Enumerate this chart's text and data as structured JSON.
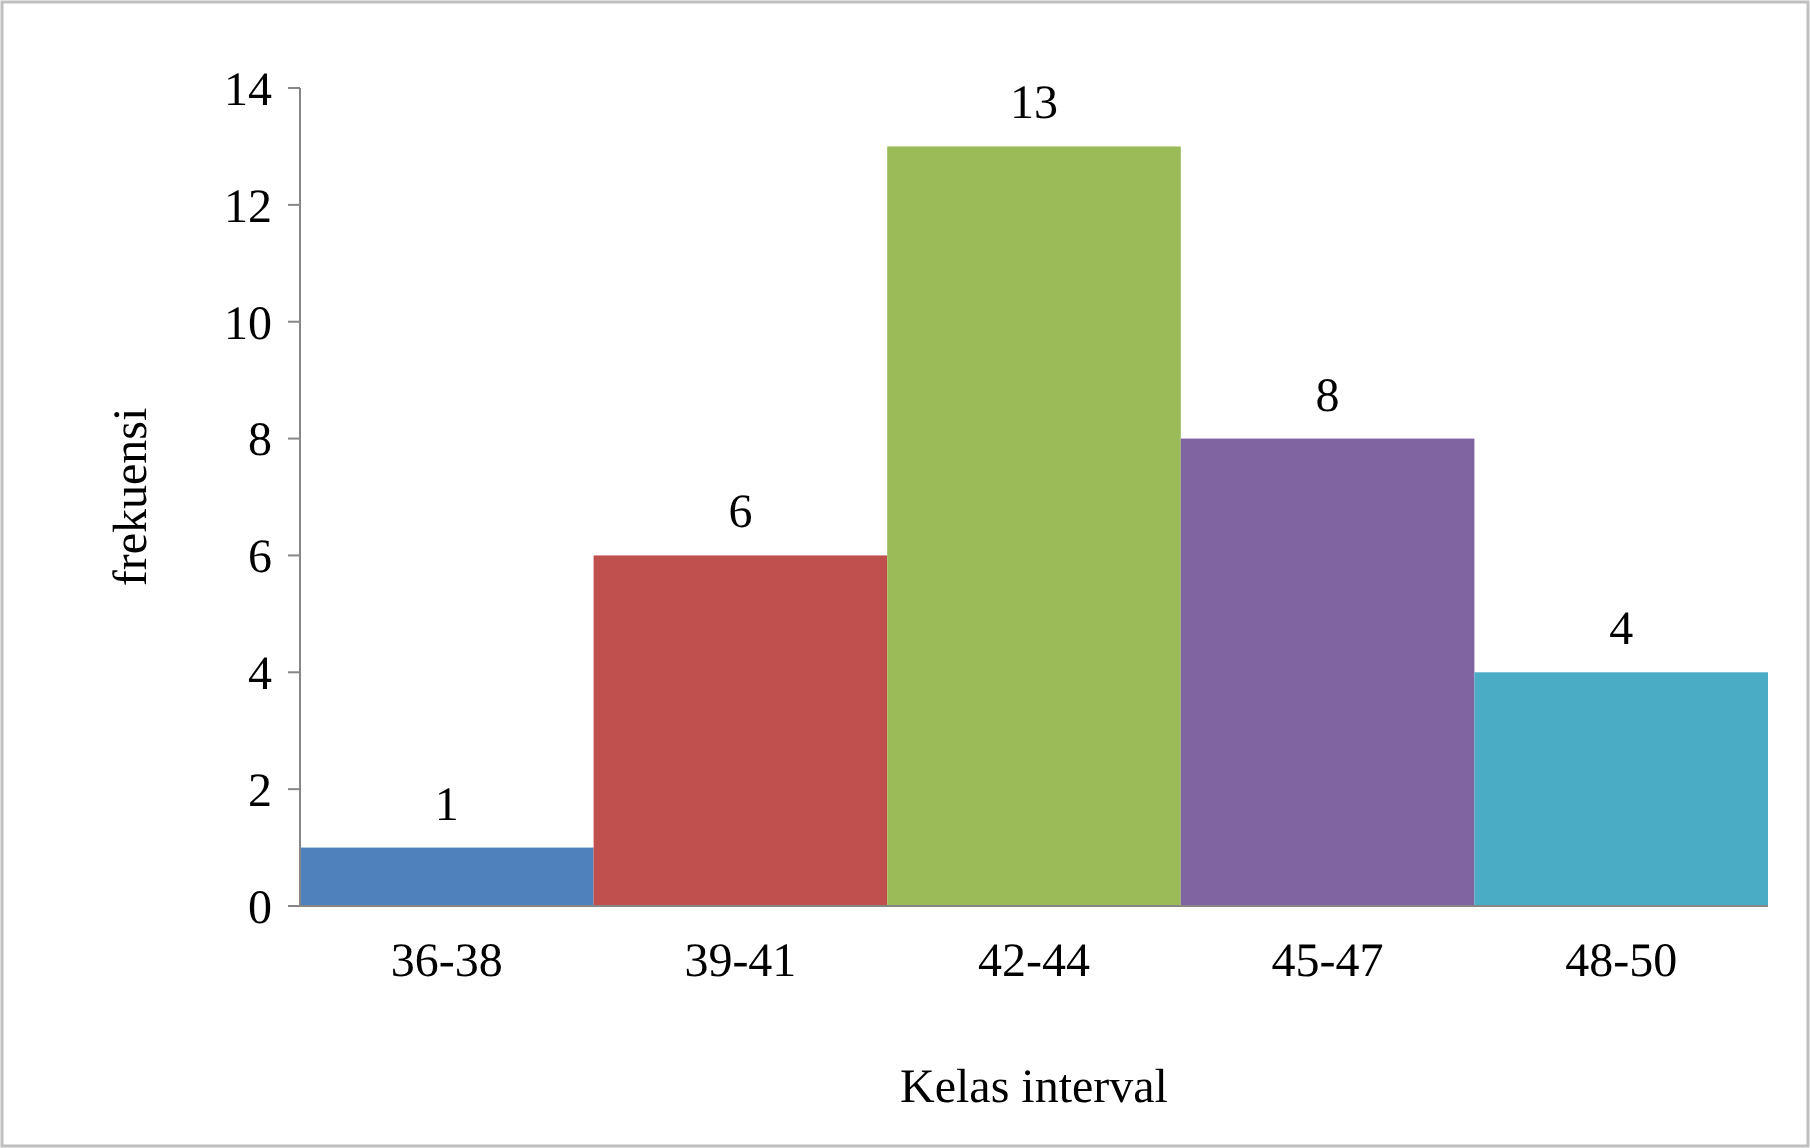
{
  "chart_data": {
    "type": "bar",
    "xlabel": "Kelas interval",
    "ylabel": "frekuensi",
    "categories": [
      "36-38",
      "39-41",
      "42-44",
      "45-47",
      "48-50"
    ],
    "values": [
      1,
      6,
      13,
      8,
      4
    ],
    "colors": [
      "#4f81bd",
      "#c0504d",
      "#9bbb59",
      "#8064a2",
      "#4bacc6"
    ],
    "ylim": [
      0,
      14
    ],
    "yticks": [
      0,
      2,
      4,
      6,
      8,
      10,
      12,
      14
    ],
    "data_labels": true
  }
}
